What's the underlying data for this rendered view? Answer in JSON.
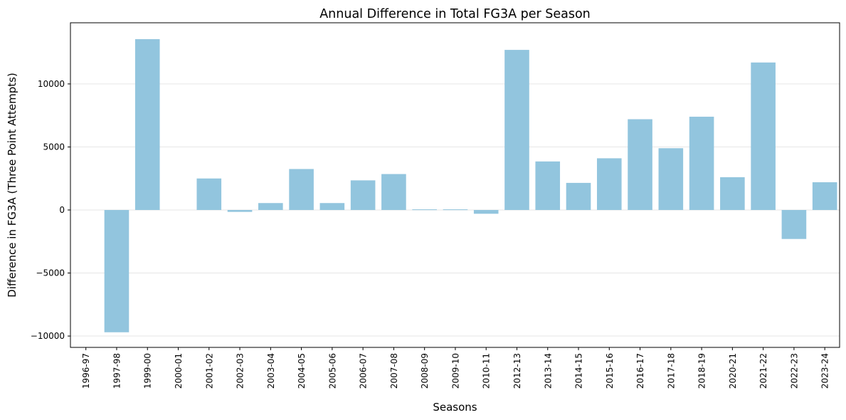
{
  "chart_data": {
    "type": "bar",
    "title": "Annual Difference in Total FG3A per Season",
    "xlabel": "Seasons",
    "ylabel": "Difference in FG3A (Three Point Attempts)",
    "categories": [
      "1996-97",
      "1997-98",
      "1999-00",
      "2000-01",
      "2001-02",
      "2002-03",
      "2003-04",
      "2004-05",
      "2005-06",
      "2006-07",
      "2007-08",
      "2008-09",
      "2009-10",
      "2010-11",
      "2012-13",
      "2013-14",
      "2014-15",
      "2015-16",
      "2016-17",
      "2017-18",
      "2018-19",
      "2020-21",
      "2021-22",
      "2022-23",
      "2023-24"
    ],
    "values": [
      0,
      -9700,
      13550,
      0,
      2500,
      -150,
      550,
      3250,
      550,
      2350,
      2850,
      50,
      50,
      -300,
      12700,
      3850,
      2150,
      4100,
      7200,
      4900,
      7400,
      2600,
      11700,
      -2300,
      2200
    ],
    "yticks": [
      -10000,
      -5000,
      0,
      5000,
      10000
    ],
    "ylim": [
      -10900,
      14850
    ],
    "grid": "y",
    "bar_color": "#92c5de"
  }
}
